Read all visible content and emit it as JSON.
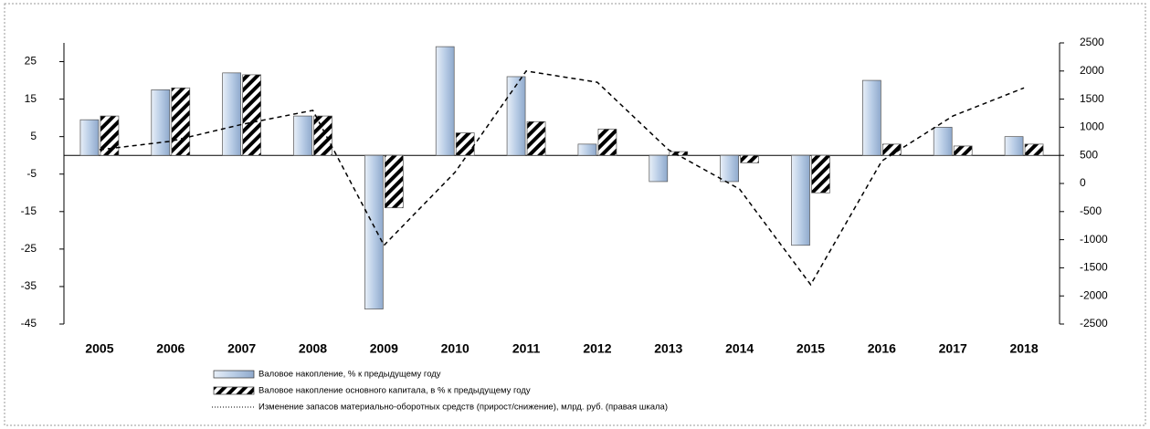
{
  "chart_data": {
    "type": "bar",
    "categories": [
      "2005",
      "2006",
      "2007",
      "2008",
      "2009",
      "2010",
      "2011",
      "2012",
      "2013",
      "2014",
      "2015",
      "2016",
      "2017",
      "2018"
    ],
    "series": [
      {
        "name": "Валовое накопление, % к предыдущему году",
        "color": "#c5d5ea",
        "values": [
          9.5,
          17.5,
          22,
          10.5,
          -41,
          29,
          21,
          3,
          -7,
          -7,
          -24,
          20,
          7.5,
          5
        ]
      },
      {
        "name": "Валовое накопление основного капитала, в % к предыдущему году",
        "color": "#ffffff",
        "values": [
          10.5,
          18,
          21.5,
          10.5,
          -14,
          6,
          9,
          7,
          1,
          -2,
          -10,
          3,
          2.5,
          3
        ]
      },
      {
        "name": "Изменение запасов материально-оборотных средств (прирост/снижение), млрд. руб. (правая шкала)",
        "color": "#000000",
        "axis": "y2",
        "type": "line",
        "values": [
          600,
          750,
          1050,
          1300,
          -1100,
          200,
          2000,
          1800,
          600,
          -100,
          -1800,
          400,
          1200,
          1700
        ]
      }
    ],
    "ylim": [
      -45,
      30
    ],
    "yticks": [
      -45,
      -35,
      -25,
      -15,
      -5,
      5,
      15,
      25
    ],
    "y2lim": [
      -2500,
      2500
    ],
    "y2ticks": [
      -2500,
      -2000,
      -1500,
      -1000,
      -500,
      0,
      500,
      1000,
      1500,
      2000,
      2500
    ]
  }
}
